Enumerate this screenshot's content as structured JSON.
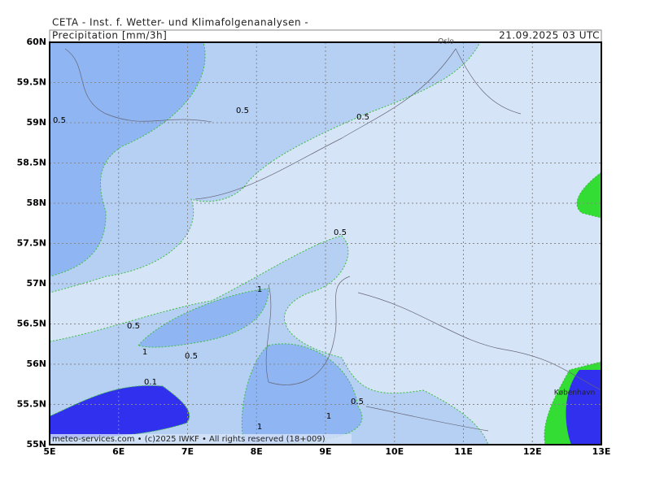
{
  "header": {
    "title": "CETA - Inst. f. Wetter- und Klimafolgenanalysen -",
    "parameter": "Precipitation [mm/3h]",
    "valid_time": "21.09.2025 03 UTC"
  },
  "map": {
    "lat_labels": [
      "60N",
      "59.5N",
      "59N",
      "58.5N",
      "58N",
      "57.5N",
      "57N",
      "56.5N",
      "56N",
      "55.5N",
      "55N"
    ],
    "lon_labels": [
      "5E",
      "6E",
      "7E",
      "8E",
      "9E",
      "10E",
      "11E",
      "12E",
      "13E"
    ],
    "contour_labels": [
      "0.5",
      "0.5",
      "0.5",
      "0.5",
      "1",
      "0.5",
      "1",
      "0.5",
      "0.1",
      "0.5",
      "1",
      "1"
    ],
    "places": [
      "Oslo",
      "København"
    ]
  },
  "footer": "meteo-services.com • (c)2025 IWKF • All rights reserved (18+009)"
}
